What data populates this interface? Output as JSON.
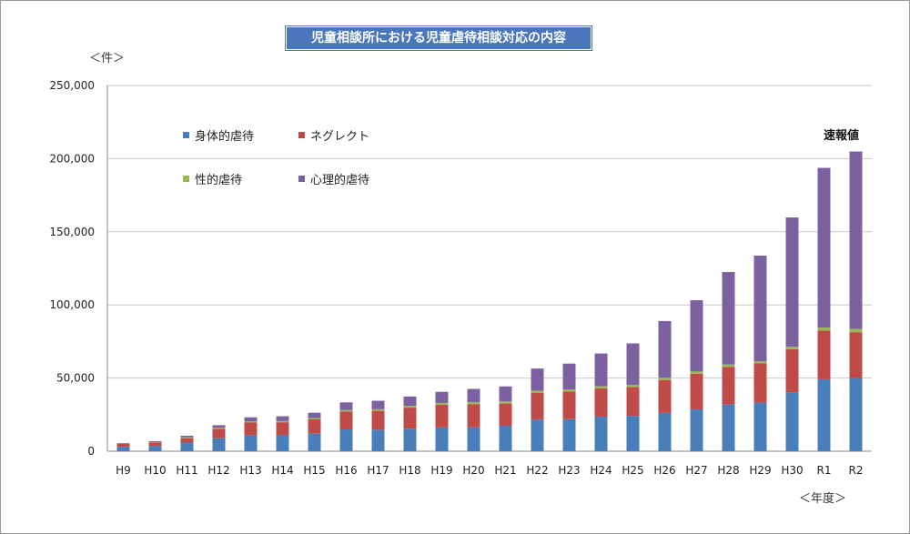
{
  "chart_data": {
    "type": "bar",
    "stacked": true,
    "title": "児童相談所における児童虐待相談対応の内容",
    "ylabel": "＜件＞",
    "xlabel": "＜年度＞",
    "annotation": "速報値",
    "ylim": [
      0,
      250000
    ],
    "yticks": [
      "0",
      "50,000",
      "100,000",
      "150,000",
      "200,000",
      "250,000"
    ],
    "ytick_values": [
      0,
      50000,
      100000,
      150000,
      200000,
      250000
    ],
    "grid": true,
    "legend_position": "top-left",
    "categories": [
      "H9",
      "H10",
      "H11",
      "H12",
      "H13",
      "H14",
      "H15",
      "H16",
      "H17",
      "H18",
      "H19",
      "H20",
      "H21",
      "H22",
      "H23",
      "H24",
      "H25",
      "H26",
      "H27",
      "H28",
      "H29",
      "H30",
      "R1",
      "R2"
    ],
    "series": [
      {
        "name": "身体的虐待",
        "color": "#4a7ebb",
        "values": [
          3000,
          3700,
          5900,
          8900,
          10800,
          10900,
          12000,
          14900,
          14700,
          15400,
          16300,
          16300,
          17400,
          21600,
          21900,
          23600,
          24200,
          26200,
          28600,
          31900,
          33200,
          40200,
          49200,
          50000
        ]
      },
      {
        "name": "ネグレクト",
        "color": "#be4b48",
        "values": [
          2000,
          2300,
          3000,
          6300,
          8800,
          8900,
          9800,
          12300,
          12900,
          14400,
          15400,
          15900,
          15200,
          18400,
          18800,
          19300,
          19600,
          22500,
          24400,
          25800,
          26800,
          29500,
          33300,
          31400
        ]
      },
      {
        "name": "性的虐待",
        "color": "#98b954",
        "values": [
          300,
          300,
          600,
          800,
          800,
          800,
          900,
          1000,
          1100,
          1200,
          1300,
          1300,
          1400,
          1400,
          1500,
          1500,
          1600,
          1500,
          1500,
          1600,
          1500,
          1700,
          2100,
          2200
        ]
      },
      {
        "name": "心理的虐待",
        "color": "#7d60a0",
        "values": [
          300,
          600,
          1100,
          1800,
          2800,
          3300,
          3600,
          5200,
          5800,
          6400,
          7600,
          9100,
          10300,
          15100,
          17700,
          22400,
          28300,
          38800,
          48700,
          63200,
          72200,
          88400,
          109100,
          121300
        ]
      }
    ]
  }
}
